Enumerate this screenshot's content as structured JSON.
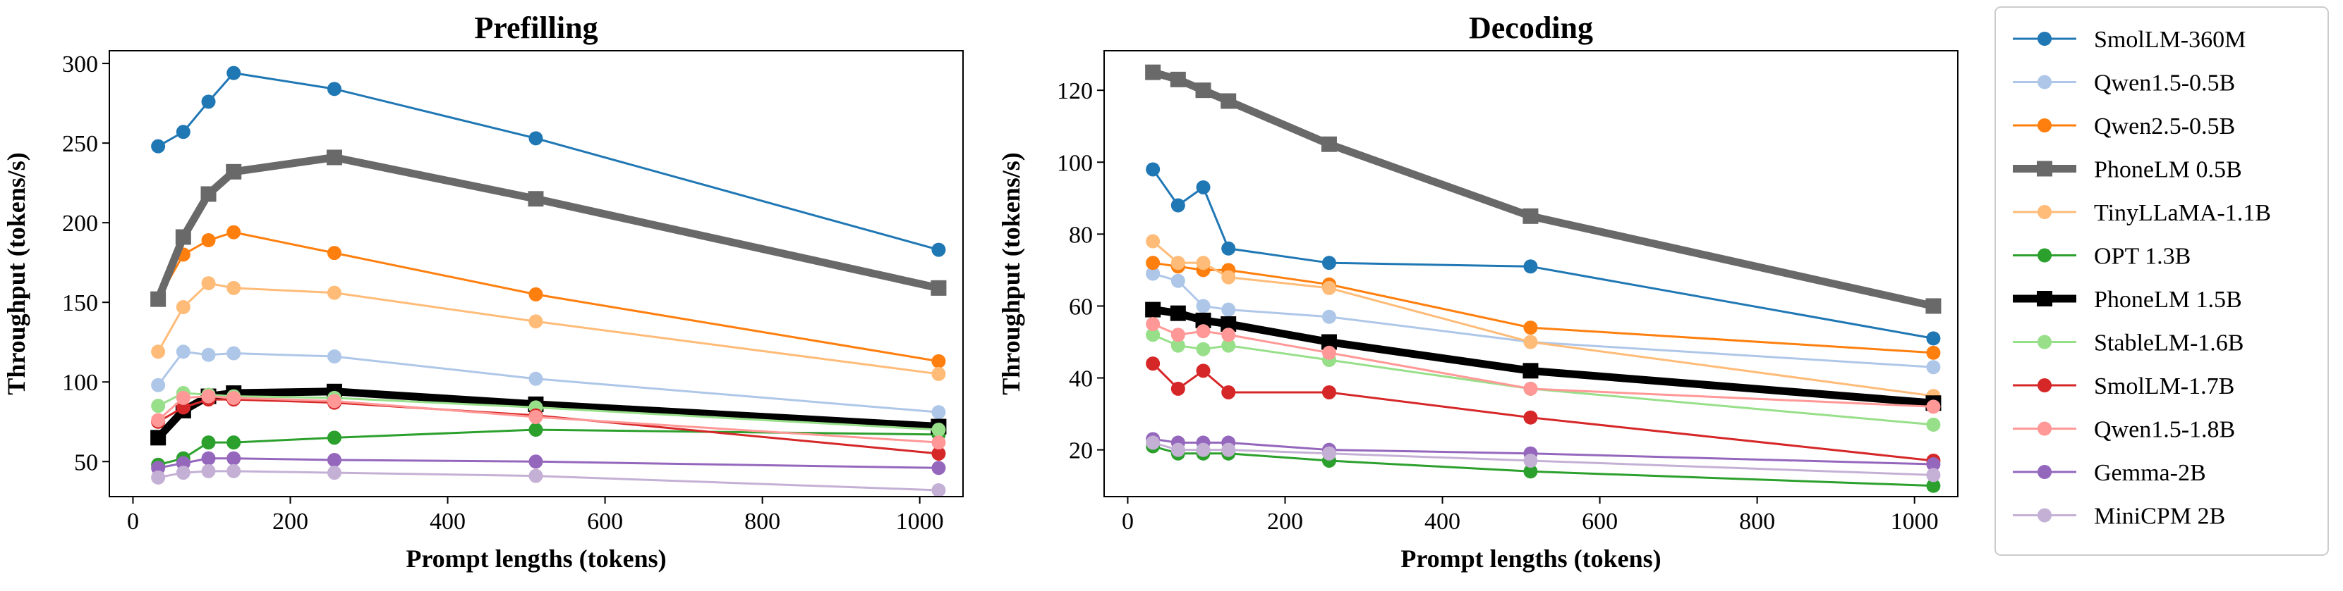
{
  "figure": {
    "description_free": true
  },
  "colors": {
    "SmolLM-360M": "#1f77b4",
    "Qwen1.5-0.5B": "#aec7e8",
    "Qwen2.5-0.5B": "#ff7f0e",
    "PhoneLM 0.5B": "#696969",
    "TinyLLaMA-1.1B": "#ffbb78",
    "OPT 1.3B": "#2ca02c",
    "PhoneLM 1.5B": "#000000",
    "StableLM-1.6B": "#98df8a",
    "SmolLM-1.7B": "#d62728",
    "Qwen1.5-1.8B": "#ff9896",
    "Gemma-2B": "#9467bd",
    "MiniCPM 2B": "#c5b0d5"
  },
  "legend": {
    "entries": [
      {
        "label": "SmolLM-360M",
        "marker": "circle",
        "thick": false
      },
      {
        "label": "Qwen1.5-0.5B",
        "marker": "circle",
        "thick": false
      },
      {
        "label": "Qwen2.5-0.5B",
        "marker": "circle",
        "thick": false
      },
      {
        "label": "PhoneLM 0.5B",
        "marker": "square",
        "thick": true
      },
      {
        "label": "TinyLLaMA-1.1B",
        "marker": "circle",
        "thick": false
      },
      {
        "label": "OPT 1.3B",
        "marker": "circle",
        "thick": false
      },
      {
        "label": "PhoneLM 1.5B",
        "marker": "square",
        "thick": true
      },
      {
        "label": "StableLM-1.6B",
        "marker": "circle",
        "thick": false
      },
      {
        "label": "SmolLM-1.7B",
        "marker": "circle",
        "thick": false
      },
      {
        "label": "Qwen1.5-1.8B",
        "marker": "circle",
        "thick": false
      },
      {
        "label": "Gemma-2B",
        "marker": "circle",
        "thick": false
      },
      {
        "label": "MiniCPM 2B",
        "marker": "circle",
        "thick": false
      }
    ]
  },
  "chart_data": [
    {
      "type": "line",
      "title": "Prefilling",
      "xlabel": "Prompt lengths (tokens)",
      "ylabel": "Throughput (tokens/s)",
      "xlim": [
        -30,
        1055
      ],
      "ylim": [
        28,
        308
      ],
      "xticks": [
        0,
        200,
        400,
        600,
        800,
        1000
      ],
      "yticks": [
        50,
        100,
        150,
        200,
        250,
        300
      ],
      "x": [
        32,
        64,
        96,
        128,
        256,
        512,
        1024
      ],
      "series": [
        {
          "name": "SmolLM-360M",
          "values": [
            248,
            257,
            276,
            294,
            284,
            253,
            183
          ]
        },
        {
          "name": "Qwen1.5-0.5B",
          "values": [
            98,
            119,
            117,
            118,
            116,
            102,
            81
          ]
        },
        {
          "name": "Qwen2.5-0.5B",
          "values": [
            152,
            180,
            189,
            194,
            181,
            155,
            113
          ]
        },
        {
          "name": "PhoneLM 0.5B",
          "values": [
            152,
            191,
            218,
            232,
            241,
            215,
            159
          ]
        },
        {
          "name": "TinyLLaMA-1.1B",
          "values": [
            119,
            147,
            162,
            159,
            156,
            138,
            105
          ]
        },
        {
          "name": "OPT 1.3B",
          "values": [
            48,
            52,
            62,
            62,
            65,
            70,
            67
          ]
        },
        {
          "name": "PhoneLM 1.5B",
          "values": [
            65,
            82,
            91,
            93,
            94,
            86,
            72
          ]
        },
        {
          "name": "StableLM-1.6B",
          "values": [
            85,
            93,
            92,
            91,
            90,
            84,
            70
          ]
        },
        {
          "name": "SmolLM-1.7B",
          "values": [
            75,
            84,
            89,
            89,
            87,
            79,
            55
          ]
        },
        {
          "name": "Qwen1.5-1.8B",
          "values": [
            76,
            90,
            91,
            90,
            88,
            78,
            62
          ]
        },
        {
          "name": "Gemma-2B",
          "values": [
            46,
            49,
            52,
            52,
            51,
            50,
            46
          ]
        },
        {
          "name": "MiniCPM 2B",
          "values": [
            40,
            43,
            44,
            44,
            43,
            41,
            32
          ]
        }
      ]
    },
    {
      "type": "line",
      "title": "Decoding",
      "xlabel": "Prompt lengths (tokens)",
      "ylabel": "Throughput (tokens/s)",
      "xlim": [
        -30,
        1055
      ],
      "ylim": [
        7,
        131
      ],
      "xticks": [
        0,
        200,
        400,
        600,
        800,
        1000
      ],
      "yticks": [
        20,
        40,
        60,
        80,
        100,
        120
      ],
      "x": [
        32,
        64,
        96,
        128,
        256,
        512,
        1024
      ],
      "series": [
        {
          "name": "SmolLM-360M",
          "values": [
            98,
            88,
            93,
            76,
            72,
            71,
            51
          ]
        },
        {
          "name": "Qwen1.5-0.5B",
          "values": [
            69,
            67,
            60,
            59,
            57,
            50,
            43
          ]
        },
        {
          "name": "Qwen2.5-0.5B",
          "values": [
            72,
            71,
            70,
            70,
            66,
            54,
            47
          ]
        },
        {
          "name": "PhoneLM 0.5B",
          "values": [
            125,
            123,
            120,
            117,
            105,
            85,
            60
          ]
        },
        {
          "name": "TinyLLaMA-1.1B",
          "values": [
            78,
            72,
            72,
            68,
            65,
            50,
            35
          ]
        },
        {
          "name": "OPT 1.3B",
          "values": [
            21,
            19,
            19,
            19,
            17,
            14,
            10
          ]
        },
        {
          "name": "PhoneLM 1.5B",
          "values": [
            59,
            58,
            56,
            55,
            50,
            42,
            33
          ]
        },
        {
          "name": "StableLM-1.6B",
          "values": [
            52,
            49,
            48,
            49,
            45,
            37,
            27
          ]
        },
        {
          "name": "SmolLM-1.7B",
          "values": [
            44,
            37,
            42,
            36,
            36,
            29,
            17
          ]
        },
        {
          "name": "Qwen1.5-1.8B",
          "values": [
            55,
            52,
            53,
            52,
            47,
            37,
            32
          ]
        },
        {
          "name": "Gemma-2B",
          "values": [
            23,
            22,
            22,
            22,
            20,
            19,
            16
          ]
        },
        {
          "name": "MiniCPM 2B",
          "values": [
            22,
            20,
            20,
            20,
            19,
            17,
            13
          ]
        }
      ]
    }
  ]
}
